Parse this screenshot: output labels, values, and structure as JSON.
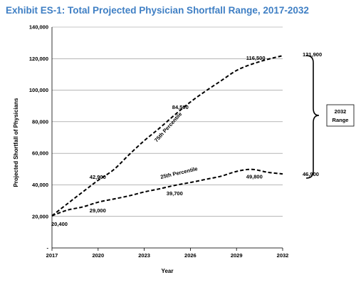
{
  "page": {
    "title": "Exhibit ES-1: Total Projected Physician Shortfall Range, 2017-2032"
  },
  "chart_data": {
    "type": "line",
    "title": "Exhibit ES-1: Total Projected Physician Shortfall Range, 2017-2032",
    "xlabel": "Year",
    "ylabel": "Projected Shortfall of Physicians",
    "x_ticks": [
      "2017",
      "2020",
      "2023",
      "2026",
      "2029",
      "2032"
    ],
    "y_ticks": [
      "-",
      "20,000",
      "40,000",
      "60,000",
      "80,000",
      "100,000",
      "120,000",
      "140,000"
    ],
    "ylim": [
      0,
      140000
    ],
    "xlim": [
      2017,
      2032
    ],
    "grid": "horizontal",
    "series": [
      {
        "name": "75th Percentile",
        "x": [
          2017,
          2018,
          2019,
          2020,
          2021,
          2022,
          2023,
          2024,
          2025,
          2026,
          2027,
          2028,
          2029,
          2030,
          2031,
          2032
        ],
        "values": [
          20400,
          28000,
          35500,
          42900,
          49500,
          59000,
          68000,
          76000,
          84500,
          92500,
          99500,
          106000,
          112500,
          116500,
          119500,
          121900
        ],
        "line_style": "dashed",
        "color": "#000000"
      },
      {
        "name": "25th Percentile",
        "x": [
          2017,
          2018,
          2019,
          2020,
          2021,
          2022,
          2023,
          2024,
          2025,
          2026,
          2027,
          2028,
          2029,
          2030,
          2031,
          2032
        ],
        "values": [
          20400,
          24000,
          26000,
          29000,
          31000,
          33000,
          35500,
          37500,
          39700,
          41500,
          43500,
          45500,
          48500,
          49800,
          48000,
          46900
        ],
        "line_style": "dashed",
        "color": "#000000"
      }
    ],
    "data_labels": [
      {
        "text": "20,400",
        "x": 2017,
        "y": 20400
      },
      {
        "text": "42,900",
        "x": 2020,
        "y": 42900
      },
      {
        "text": "84,500",
        "x": 2025,
        "y": 84500
      },
      {
        "text": "116,500",
        "x": 2030,
        "y": 116500
      },
      {
        "text": "121,900",
        "x": 2032,
        "y": 121900
      },
      {
        "text": "29,000",
        "x": 2020,
        "y": 29000
      },
      {
        "text": "39,700",
        "x": 2025,
        "y": 39700
      },
      {
        "text": "49,800",
        "x": 2030,
        "y": 49800
      },
      {
        "text": "46,900",
        "x": 2032,
        "y": 46900
      }
    ],
    "annotation": {
      "range_label_line1": "2032",
      "range_label_line2": "Range"
    }
  }
}
